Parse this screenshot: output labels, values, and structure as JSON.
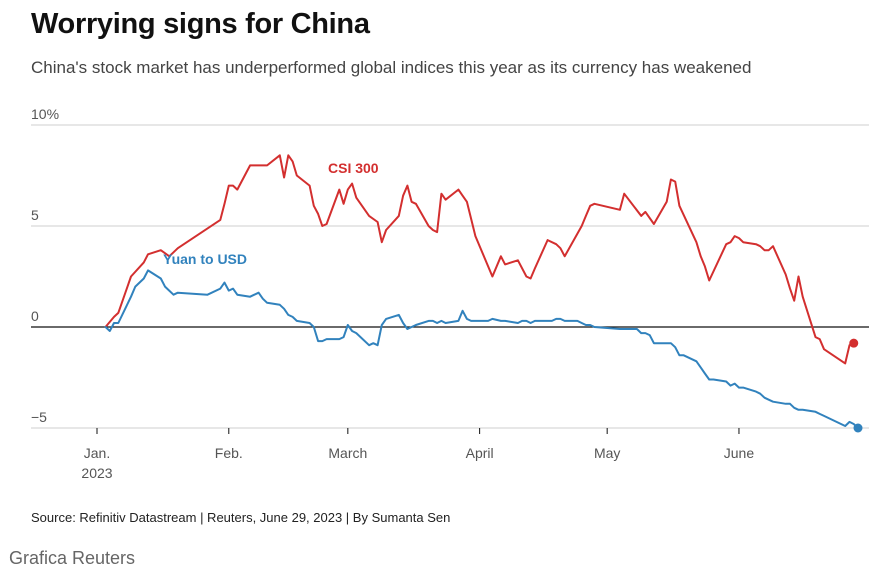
{
  "header": {
    "title": "Worrying signs for China",
    "subtitle": "China's stock market has underperformed global indices this year as its currency has weakened"
  },
  "footer": {
    "source": "Source: Refinitiv Datastream | Reuters, June 29, 2023 | By Sumanta Sen",
    "credit": "Grafica Reuters"
  },
  "chart_data": {
    "type": "line",
    "xlim": [
      "2023-01-01",
      "2023-06-29"
    ],
    "ylim": [
      -5,
      10
    ],
    "yticks": [
      {
        "value": 10,
        "label": "10%"
      },
      {
        "value": 5,
        "label": "5"
      },
      {
        "value": 0,
        "label": "0"
      },
      {
        "value": -5,
        "label": "−5"
      }
    ],
    "xticks": [
      {
        "date": "2023-01-01",
        "label": "Jan.",
        "sublabel": "2023"
      },
      {
        "date": "2023-02-01",
        "label": "Feb."
      },
      {
        "date": "2023-03-01",
        "label": "March"
      },
      {
        "date": "2023-04-01",
        "label": "April"
      },
      {
        "date": "2023-05-01",
        "label": "May"
      },
      {
        "date": "2023-06-01",
        "label": "June"
      }
    ],
    "grid": "horizontal",
    "series": [
      {
        "name": "CSI 300",
        "color": "#d32f2f",
        "x": [
          "2023-01-03",
          "2023-01-05",
          "2023-01-06",
          "2023-01-09",
          "2023-01-12",
          "2023-01-13",
          "2023-01-16",
          "2023-01-18",
          "2023-01-19",
          "2023-01-20",
          "2023-01-30",
          "2023-01-31",
          "2023-02-01",
          "2023-02-02",
          "2023-02-03",
          "2023-02-06",
          "2023-02-08",
          "2023-02-10",
          "2023-02-13",
          "2023-02-14",
          "2023-02-15",
          "2023-02-16",
          "2023-02-17",
          "2023-02-20",
          "2023-02-21",
          "2023-02-22",
          "2023-02-23",
          "2023-02-24",
          "2023-02-27",
          "2023-02-28",
          "2023-03-01",
          "2023-03-02",
          "2023-03-03",
          "2023-03-06",
          "2023-03-08",
          "2023-03-09",
          "2023-03-10",
          "2023-03-13",
          "2023-03-14",
          "2023-03-15",
          "2023-03-16",
          "2023-03-17",
          "2023-03-20",
          "2023-03-21",
          "2023-03-22",
          "2023-03-23",
          "2023-03-24",
          "2023-03-27",
          "2023-03-28",
          "2023-03-29",
          "2023-03-31",
          "2023-04-04",
          "2023-04-06",
          "2023-04-07",
          "2023-04-10",
          "2023-04-12",
          "2023-04-13",
          "2023-04-14",
          "2023-04-17",
          "2023-04-19",
          "2023-04-20",
          "2023-04-21",
          "2023-04-25",
          "2023-04-26",
          "2023-04-27",
          "2023-04-28",
          "2023-05-04",
          "2023-05-05",
          "2023-05-09",
          "2023-05-10",
          "2023-05-12",
          "2023-05-15",
          "2023-05-16",
          "2023-05-17",
          "2023-05-18",
          "2023-05-22",
          "2023-05-23",
          "2023-05-24",
          "2023-05-25",
          "2023-05-29",
          "2023-05-30",
          "2023-05-31",
          "2023-06-01",
          "2023-06-02",
          "2023-06-05",
          "2023-06-06",
          "2023-06-07",
          "2023-06-08",
          "2023-06-09",
          "2023-06-12",
          "2023-06-13",
          "2023-06-14",
          "2023-06-15",
          "2023-06-16",
          "2023-06-19",
          "2023-06-20",
          "2023-06-21",
          "2023-06-26",
          "2023-06-27",
          "2023-06-28"
        ],
        "y": [
          0,
          0.5,
          0.7,
          2.5,
          3.2,
          3.6,
          3.8,
          3.5,
          3.7,
          3.9,
          5.3,
          6.1,
          7,
          7,
          6.8,
          8,
          8,
          8,
          8.5,
          7.4,
          8.5,
          8.2,
          7.5,
          7,
          6,
          5.6,
          5,
          5.1,
          6.8,
          6.1,
          6.8,
          7.1,
          6.4,
          5.5,
          5.2,
          4.2,
          4.8,
          5.5,
          6.5,
          7,
          6.2,
          6.1,
          5,
          4.8,
          4.7,
          6.6,
          6.3,
          6.8,
          6.5,
          6.2,
          4.5,
          2.5,
          3.5,
          3.1,
          3.3,
          2.5,
          2.4,
          2.9,
          4.3,
          4.1,
          3.9,
          3.5,
          5,
          5.5,
          6,
          6.1,
          5.8,
          6.6,
          5.5,
          5.7,
          5.1,
          6.2,
          7.3,
          7.2,
          6,
          4.2,
          3.5,
          3,
          2.3,
          4.1,
          4.2,
          4.5,
          4.4,
          4.2,
          4.1,
          4.0,
          3.8,
          3.8,
          4,
          2.6,
          1.9,
          1.3,
          2.5,
          1.5,
          -0.5,
          -0.6,
          -1.1,
          -1.8,
          -0.9,
          -0.8
        ],
        "end_value": -0.8
      },
      {
        "name": "Yuan to USD",
        "color": "#3182bd",
        "x": [
          "2023-01-03",
          "2023-01-04",
          "2023-01-05",
          "2023-01-06",
          "2023-01-09",
          "2023-01-10",
          "2023-01-12",
          "2023-01-13",
          "2023-01-16",
          "2023-01-17",
          "2023-01-19",
          "2023-01-20",
          "2023-01-27",
          "2023-01-30",
          "2023-01-31",
          "2023-02-01",
          "2023-02-02",
          "2023-02-03",
          "2023-02-06",
          "2023-02-07",
          "2023-02-08",
          "2023-02-09",
          "2023-02-10",
          "2023-02-13",
          "2023-02-14",
          "2023-02-15",
          "2023-02-16",
          "2023-02-17",
          "2023-02-20",
          "2023-02-21",
          "2023-02-22",
          "2023-02-23",
          "2023-02-24",
          "2023-02-27",
          "2023-02-28",
          "2023-03-01",
          "2023-03-02",
          "2023-03-03",
          "2023-03-06",
          "2023-03-07",
          "2023-03-08",
          "2023-03-09",
          "2023-03-10",
          "2023-03-13",
          "2023-03-14",
          "2023-03-15",
          "2023-03-16",
          "2023-03-17",
          "2023-03-20",
          "2023-03-21",
          "2023-03-22",
          "2023-03-23",
          "2023-03-24",
          "2023-03-27",
          "2023-03-28",
          "2023-03-29",
          "2023-03-30",
          "2023-03-31",
          "2023-04-03",
          "2023-04-04",
          "2023-04-06",
          "2023-04-07",
          "2023-04-10",
          "2023-04-11",
          "2023-04-12",
          "2023-04-13",
          "2023-04-14",
          "2023-04-17",
          "2023-04-18",
          "2023-04-19",
          "2023-04-20",
          "2023-04-21",
          "2023-04-24",
          "2023-04-25",
          "2023-04-26",
          "2023-04-27",
          "2023-04-28",
          "2023-05-04",
          "2023-05-05",
          "2023-05-08",
          "2023-05-09",
          "2023-05-10",
          "2023-05-11",
          "2023-05-12",
          "2023-05-15",
          "2023-05-16",
          "2023-05-17",
          "2023-05-18",
          "2023-05-19",
          "2023-05-22",
          "2023-05-23",
          "2023-05-24",
          "2023-05-25",
          "2023-05-26",
          "2023-05-29",
          "2023-05-30",
          "2023-05-31",
          "2023-06-01",
          "2023-06-02",
          "2023-06-05",
          "2023-06-06",
          "2023-06-07",
          "2023-06-08",
          "2023-06-09",
          "2023-06-12",
          "2023-06-13",
          "2023-06-14",
          "2023-06-15",
          "2023-06-16",
          "2023-06-19",
          "2023-06-20",
          "2023-06-21",
          "2023-06-26",
          "2023-06-27",
          "2023-06-28",
          "2023-06-29"
        ],
        "y": [
          0,
          -0.2,
          0.2,
          0.2,
          1.5,
          2.0,
          2.4,
          2.8,
          2.4,
          2.0,
          1.6,
          1.7,
          1.6,
          1.9,
          2.2,
          1.8,
          1.9,
          1.6,
          1.5,
          1.6,
          1.7,
          1.4,
          1.2,
          1.1,
          0.9,
          0.6,
          0.5,
          0.3,
          0.2,
          0,
          -0.7,
          -0.7,
          -0.6,
          -0.6,
          -0.5,
          0.1,
          -0.2,
          -0.3,
          -0.9,
          -0.8,
          -0.9,
          0.1,
          0.4,
          0.6,
          0.2,
          -0.1,
          0,
          0.1,
          0.3,
          0.3,
          0.2,
          0.3,
          0.2,
          0.3,
          0.8,
          0.4,
          0.3,
          0.3,
          0.3,
          0.4,
          0.3,
          0.3,
          0.2,
          0.3,
          0.3,
          0.2,
          0.3,
          0.3,
          0.3,
          0.4,
          0.4,
          0.3,
          0.3,
          0.2,
          0.1,
          0.1,
          0,
          -0.1,
          -0.1,
          -0.1,
          -0.3,
          -0.3,
          -0.4,
          -0.8,
          -0.8,
          -0.8,
          -1.0,
          -1.4,
          -1.4,
          -1.7,
          -2.0,
          -2.3,
          -2.6,
          -2.6,
          -2.7,
          -2.9,
          -2.8,
          -3.0,
          -3.0,
          -3.2,
          -3.3,
          -3.5,
          -3.6,
          -3.7,
          -3.8,
          -3.8,
          -4.0,
          -4.1,
          -4.1,
          -4.2,
          -4.3,
          -4.4,
          -4.9,
          -4.7,
          -4.8,
          -5.0
        ],
        "end_value": -5.0
      }
    ]
  }
}
